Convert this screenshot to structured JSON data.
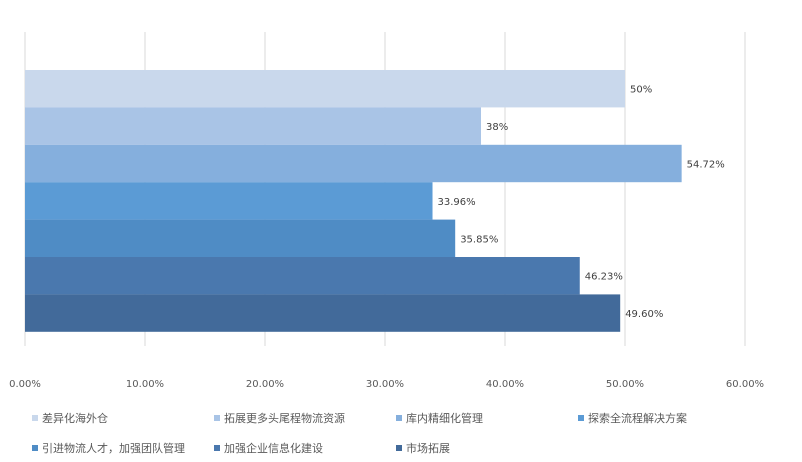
{
  "chart_data": {
    "type": "bar",
    "orientation": "horizontal",
    "xlim": [
      0,
      60
    ],
    "xticks": [
      "0.00%",
      "10.00%",
      "20.00%",
      "30.00%",
      "40.00%",
      "50.00%",
      "60.00%"
    ],
    "grid": true,
    "legend_position": "bottom",
    "series": [
      {
        "name": "差异化海外仓",
        "value": 50,
        "label": "50%",
        "color": "#c9d8ec"
      },
      {
        "name": "拓展更多头尾程物流资源",
        "value": 38,
        "label": "38%",
        "color": "#a9c4e6"
      },
      {
        "name": "库内精细化管理",
        "value": 54.72,
        "label": "54.72%",
        "color": "#85afdd"
      },
      {
        "name": "探索全流程解决方案",
        "value": 33.96,
        "label": "33.96%",
        "color": "#5b9bd5"
      },
      {
        "name": "引进物流人才，加强团队管理",
        "value": 35.85,
        "label": "35.85%",
        "color": "#4f8cc5"
      },
      {
        "name": "加强企业信息化建设",
        "value": 46.23,
        "label": "46.23%",
        "color": "#4a78ae"
      },
      {
        "name": "市场拓展",
        "value": 49.6,
        "label": "49.60%",
        "color": "#426a9a"
      }
    ]
  }
}
